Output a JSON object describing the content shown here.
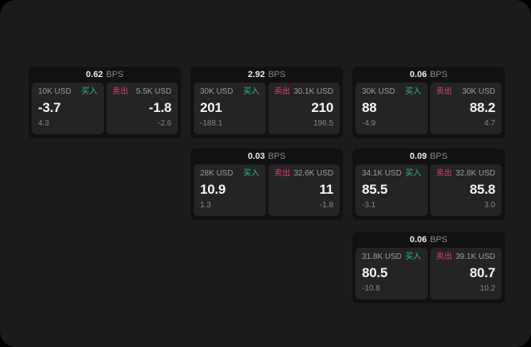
{
  "page": {
    "outer_background": "#000000",
    "surface_background": "#1b1b1d"
  },
  "colors": {
    "buy_green": "#2ebd85",
    "sell_red": "#d8475f"
  },
  "labels": {
    "buy": "买入",
    "sell": "卖出",
    "bps_suffix": "BPS"
  },
  "cards": [
    {
      "bps": "0.62",
      "buy": {
        "amount": "10K USD",
        "price": "-3.7",
        "delta": "4.3"
      },
      "sell": {
        "amount": "5.5K USD",
        "price": "-1.8",
        "delta": "-2.6"
      }
    },
    {
      "bps": "2.92",
      "buy": {
        "amount": "30K USD",
        "price": "201",
        "delta": "-188.1"
      },
      "sell": {
        "amount": "30.1K USD",
        "price": "210",
        "delta": "196.5"
      }
    },
    {
      "bps": "0.06",
      "buy": {
        "amount": "30K USD",
        "price": "88",
        "delta": "-4.9"
      },
      "sell": {
        "amount": "30K USD",
        "price": "88.2",
        "delta": "4.7"
      }
    },
    {
      "bps": "0.03",
      "buy": {
        "amount": "28K USD",
        "price": "10.9",
        "delta": "1.3"
      },
      "sell": {
        "amount": "32.6K USD",
        "price": "11",
        "delta": "-1.8"
      }
    },
    {
      "bps": "0.09",
      "buy": {
        "amount": "34.1K USD",
        "price": "85.5",
        "delta": "-3.1"
      },
      "sell": {
        "amount": "32.8K USD",
        "price": "85.8",
        "delta": "3.0"
      }
    },
    {
      "bps": "0.06",
      "buy": {
        "amount": "31.8K USD",
        "price": "80.5",
        "delta": "-10.8"
      },
      "sell": {
        "amount": "39.1K USD",
        "price": "80.7",
        "delta": "10.2"
      }
    }
  ]
}
